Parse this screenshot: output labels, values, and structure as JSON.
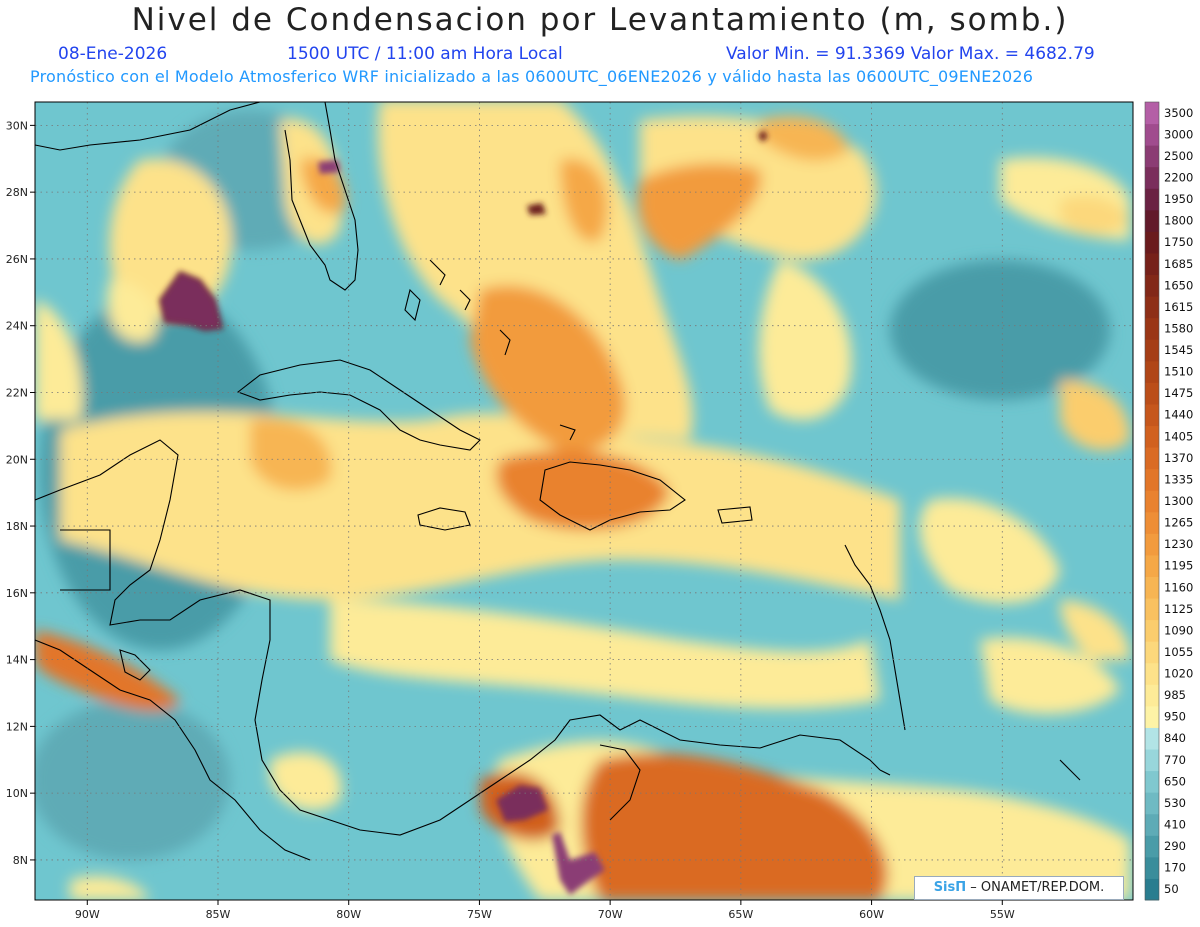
{
  "header": {
    "title": "Nivel de Condensacion por Levantamiento (m, somb.)",
    "date": "08-Ene-2026",
    "time": "1500 UTC / 11:00 am Hora Local",
    "min_max": "Valor Min. = 91.3369  Valor Max. = 4682.79",
    "model_info": "Pronóstico con el Modelo Atmosferico WRF inicializado a las 0600UTC_06ENE2026 y válido hasta las  0600UTC_09ENE2026"
  },
  "map": {
    "lon_range": [
      -92,
      -50
    ],
    "lat_range": [
      6.8,
      30.7
    ],
    "lon_ticks": [
      {
        "value": -90,
        "label": "90W"
      },
      {
        "value": -85,
        "label": "85W"
      },
      {
        "value": -80,
        "label": "80W"
      },
      {
        "value": -75,
        "label": "75W"
      },
      {
        "value": -70,
        "label": "70W"
      },
      {
        "value": -65,
        "label": "65W"
      },
      {
        "value": -60,
        "label": "60W"
      },
      {
        "value": -55,
        "label": "55W"
      }
    ],
    "lat_ticks": [
      {
        "value": 8,
        "label": "8N"
      },
      {
        "value": 10,
        "label": "10N"
      },
      {
        "value": 12,
        "label": "12N"
      },
      {
        "value": 14,
        "label": "14N"
      },
      {
        "value": 16,
        "label": "16N"
      },
      {
        "value": 18,
        "label": "18N"
      },
      {
        "value": 20,
        "label": "20N"
      },
      {
        "value": 22,
        "label": "22N"
      },
      {
        "value": 24,
        "label": "24N"
      },
      {
        "value": 26,
        "label": "26N"
      },
      {
        "value": 28,
        "label": "28N"
      },
      {
        "value": 30,
        "label": "30N"
      }
    ],
    "grid": "dotted",
    "colors": {
      "ocean_base": "#6fc6cf",
      "coast": "#000000"
    }
  },
  "colorbar": {
    "levels": [
      "50",
      "170",
      "290",
      "410",
      "530",
      "650",
      "770",
      "840",
      "950",
      "985",
      "1020",
      "1055",
      "1090",
      "1125",
      "1160",
      "1195",
      "1230",
      "1265",
      "1300",
      "1335",
      "1370",
      "1405",
      "1440",
      "1475",
      "1510",
      "1545",
      "1580",
      "1615",
      "1650",
      "1685",
      "1750",
      "1800",
      "1950",
      "2200",
      "2500",
      "3000",
      "3500"
    ],
    "colors": [
      "#2a7d8f",
      "#3a8d9b",
      "#4a9ca8",
      "#5eabb6",
      "#6fbac3",
      "#80c8cf",
      "#98d6db",
      "#b2e4e6",
      "#fdf3a6",
      "#fdeb98",
      "#fde28a",
      "#fcd87c",
      "#fbcd6d",
      "#f9c160",
      "#f7b553",
      "#f5a847",
      "#f29b3e",
      "#ee8e36",
      "#e9822f",
      "#e27629",
      "#da6b24",
      "#d1611f",
      "#c6571c",
      "#bb4e19",
      "#b04617",
      "#a53e16",
      "#9a3616",
      "#8e2f17",
      "#822818",
      "#76211a",
      "#6a1b1d",
      "#621a2a",
      "#6a2243",
      "#7a2e5c",
      "#8b3c74",
      "#a04c8e",
      "#b45fa6"
    ]
  },
  "badge": {
    "sis": "SisΠ",
    "org": "– ONAMET/REP.DOM."
  }
}
